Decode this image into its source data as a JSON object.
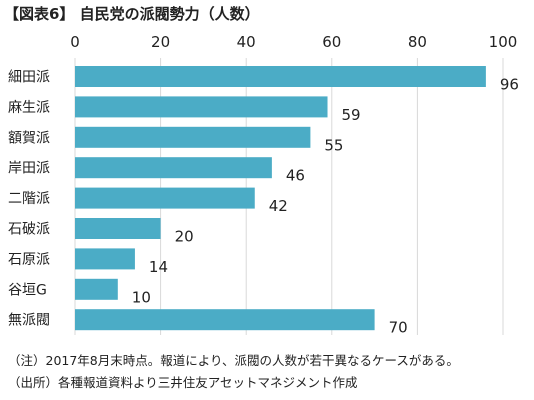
{
  "title": "【図表6】 自民党の派閥勢力（人数）",
  "colors": {
    "bar": "#4bacc6",
    "grid": "#d9d9d9",
    "text": "#222222"
  },
  "chart_data": {
    "type": "bar",
    "orientation": "horizontal",
    "categories": [
      "細田派",
      "麻生派",
      "額賀派",
      "岸田派",
      "二階派",
      "石破派",
      "石原派",
      "谷垣G",
      "無派閥"
    ],
    "values": [
      96,
      59,
      55,
      46,
      42,
      20,
      14,
      10,
      70
    ],
    "data_labels": [
      "96",
      "59",
      "55",
      "46",
      "42",
      "20",
      "14",
      "10",
      "70"
    ],
    "xlim": [
      0,
      100
    ],
    "xticks": [
      0,
      20,
      40,
      60,
      80,
      100
    ],
    "xtick_labels": [
      "0",
      "20",
      "40",
      "60",
      "80",
      "100"
    ],
    "axis_position": "top",
    "grid": true,
    "legend": "none"
  },
  "notes": [
    "（注）2017年8月末時点。報道により、派閥の人数が若干異なるケースがある。",
    "（出所）各種報道資料より三井住友アセットマネジメント作成"
  ]
}
